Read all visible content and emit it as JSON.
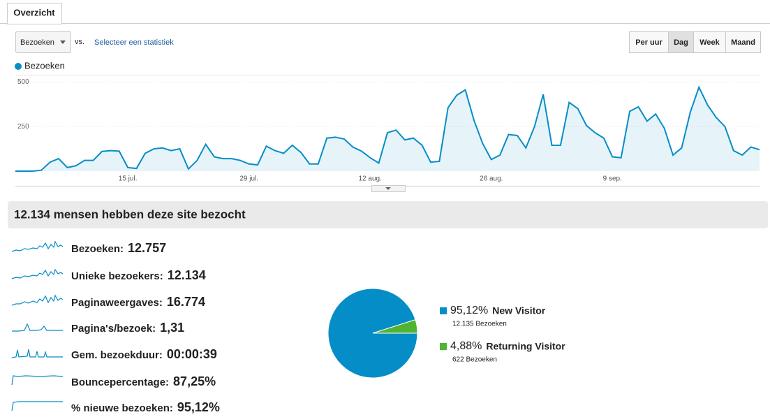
{
  "tab": "Overzicht",
  "controls": {
    "metric": "Bezoeken",
    "vs": "vs.",
    "compare": "Selecteer een statistiek",
    "periods": [
      "Per uur",
      "Dag",
      "Week",
      "Maand"
    ],
    "selected_period": "Dag"
  },
  "chart_data": [
    {
      "type": "line",
      "categories": [
        null,
        null,
        null,
        null,
        null,
        null,
        null,
        null,
        null,
        null,
        null,
        null,
        null,
        "15 jul.",
        null,
        null,
        null,
        null,
        null,
        null,
        null,
        null,
        null,
        null,
        null,
        null,
        null,
        "29 jul.",
        null,
        null,
        null,
        null,
        null,
        null,
        null,
        null,
        null,
        null,
        null,
        null,
        null,
        "12 aug.",
        null,
        null,
        null,
        null,
        null,
        null,
        null,
        null,
        null,
        null,
        null,
        null,
        null,
        "26 aug.",
        null,
        null,
        null,
        null,
        null,
        null,
        null,
        null,
        null,
        null,
        null,
        null,
        null,
        "9 sep.",
        null,
        null,
        null,
        null,
        null,
        null,
        null,
        null,
        null,
        null,
        null,
        null,
        null,
        null,
        null,
        null,
        null
      ],
      "series": [
        {
          "name": "Bezoeken",
          "color": "#058dc7",
          "values": [
            0,
            0,
            0,
            5,
            50,
            70,
            20,
            30,
            60,
            60,
            110,
            115,
            112,
            20,
            15,
            100,
            125,
            130,
            115,
            125,
            12,
            60,
            150,
            80,
            70,
            70,
            60,
            40,
            35,
            140,
            115,
            100,
            145,
            105,
            40,
            40,
            185,
            190,
            180,
            135,
            112,
            75,
            45,
            215,
            230,
            175,
            185,
            145,
            50,
            55,
            355,
            425,
            455,
            285,
            155,
            65,
            90,
            205,
            200,
            130,
            250,
            430,
            145,
            145,
            385,
            350,
            255,
            215,
            185,
            80,
            75,
            335,
            360,
            280,
            320,
            240,
            90,
            130,
            330,
            470,
            370,
            300,
            250,
            115,
            90,
            135,
            120
          ]
        }
      ],
      "ylim": [
        0,
        540
      ],
      "yticks": [
        250,
        500
      ],
      "grid": true
    },
    {
      "type": "pie",
      "categories": [
        "New Visitor",
        "Returning Visitor"
      ],
      "values": [
        95.12,
        4.88
      ],
      "value_labels": [
        "95,12%",
        "4,88%"
      ],
      "colors": [
        "#058dc7",
        "#50b432"
      ],
      "details": [
        "12.135 Bezoeken",
        "622 Bezoeken"
      ]
    }
  ],
  "summary": "12.134 mensen hebben deze site bezocht",
  "metrics": [
    {
      "label": "Bezoeken:",
      "value": "12.757"
    },
    {
      "label": "Unieke bezoekers:",
      "value": "12.134"
    },
    {
      "label": "Paginaweergaves:",
      "value": "16.774"
    },
    {
      "label": "Pagina's/bezoek:",
      "value": "1,31"
    },
    {
      "label": "Gem. bezoekduur:",
      "value": "00:00:39"
    },
    {
      "label": "Bouncepercentage:",
      "value": "87,25%"
    },
    {
      "label": "% nieuwe bezoeken:",
      "value": "95,12%"
    }
  ]
}
